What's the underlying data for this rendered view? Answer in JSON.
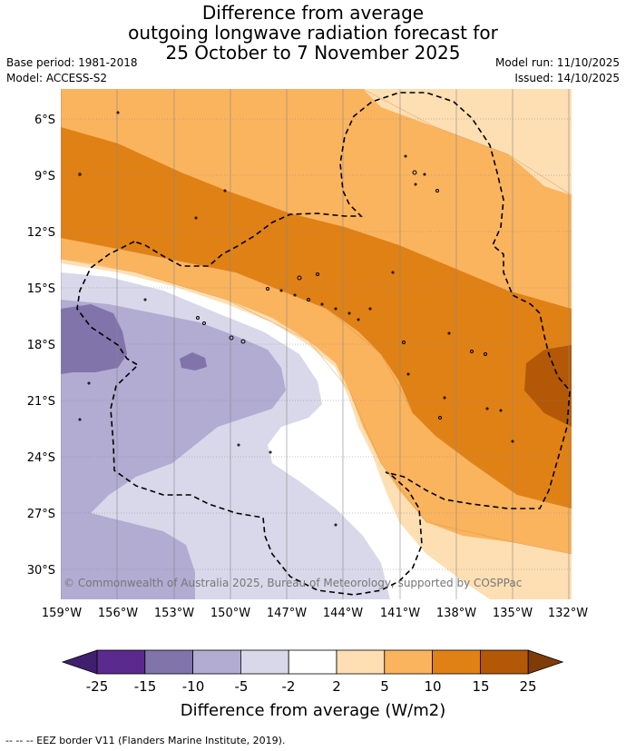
{
  "title": {
    "line1": "Difference from average",
    "line2": "outgoing longwave radiation forecast for",
    "line3": "25 October to 7 November 2025"
  },
  "meta": {
    "base_period": "Base period: 1981-2018",
    "model": "Model: ACCESS-S2",
    "model_run": "Model run: 11/10/2025",
    "issued": "Issued: 14/10/2025"
  },
  "map": {
    "latitude_labels": [
      "6°S",
      "9°S",
      "12°S",
      "15°S",
      "18°S",
      "21°S",
      "24°S",
      "27°S",
      "30°S"
    ],
    "longitude_labels": [
      "159°W",
      "156°W",
      "153°W",
      "150°W",
      "147°W",
      "144°W",
      "141°W",
      "138°W",
      "135°W",
      "132°W"
    ],
    "copyright": "© Commonwealth of Australia 2025, Bureau of Meteorology, supported by COSPPac"
  },
  "colorbar": {
    "ticks": [
      "-25",
      "-15",
      "-10",
      "-5",
      "-2",
      "2",
      "5",
      "10",
      "15",
      "25"
    ],
    "colors": [
      "#3f1f6e",
      "#5a2a8e",
      "#8074aa",
      "#b2abd2",
      "#d8d8ea",
      "#ffffff",
      "#fddfb3",
      "#fbb45e",
      "#e08115",
      "#b35806",
      "#7f3b08"
    ],
    "label": "Difference from average (W/m2)"
  },
  "footer": "--  --  -- EEZ border V11 (Flanders Marine Institute, 2019)."
}
